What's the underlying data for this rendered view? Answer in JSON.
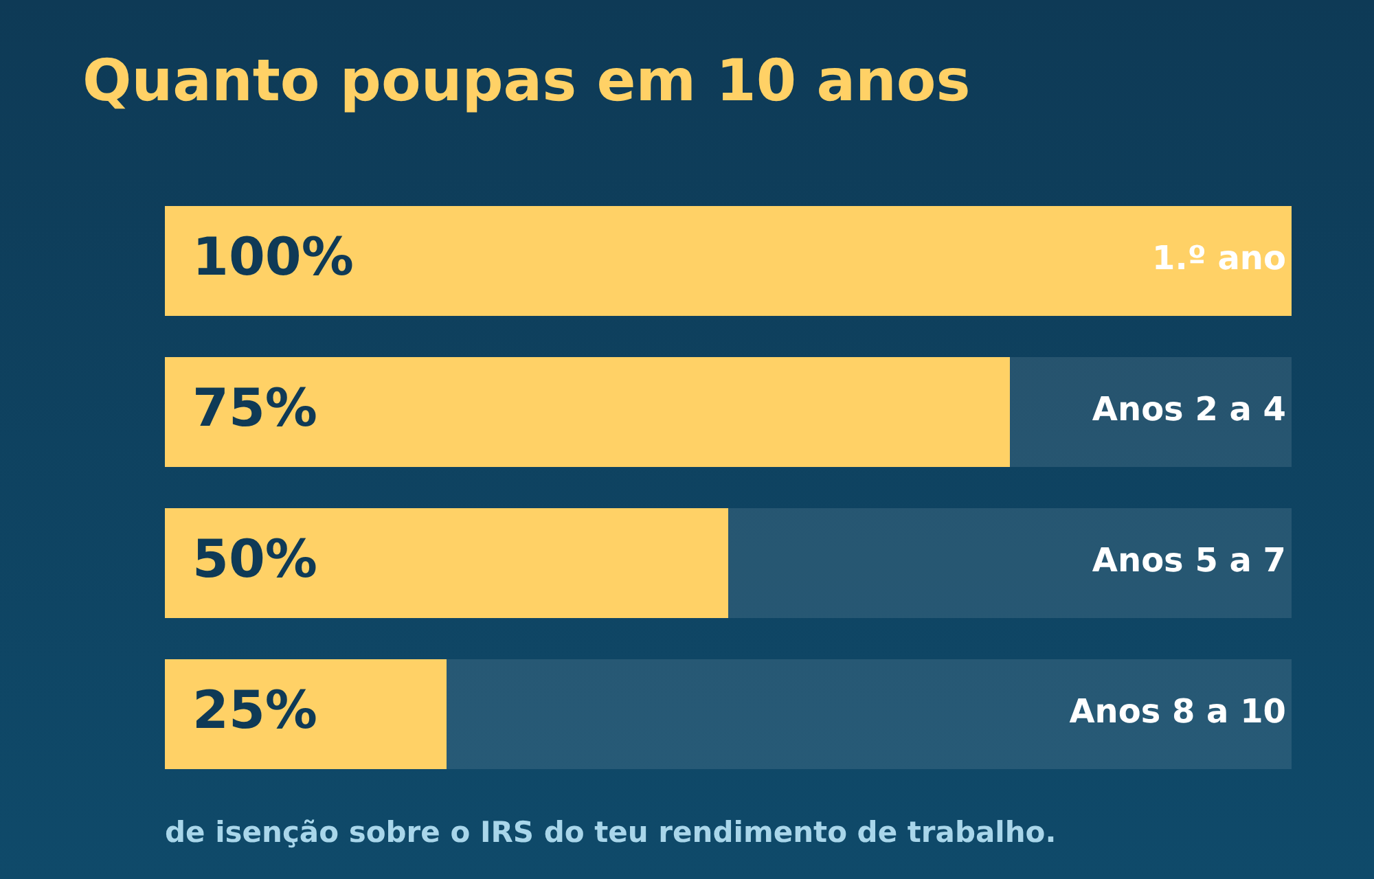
{
  "chart_data": {
    "type": "bar",
    "orientation": "horizontal",
    "title": "Quanto poupas em 10 anos",
    "categories": [
      "1.º ano",
      "Anos 2 a 4",
      "Anos 5 a 7",
      "Anos 8 a 10"
    ],
    "values": [
      100,
      75,
      50,
      25
    ],
    "color": "#ffd166",
    "value_labels": [
      "100%",
      "75%",
      "50%",
      "25%"
    ],
    "xlim": [
      0,
      100
    ],
    "tick_labels": false,
    "legend": false,
    "annotations": [
      "de isenção sobre o IRS do teu rendimento de trabalho."
    ]
  }
}
